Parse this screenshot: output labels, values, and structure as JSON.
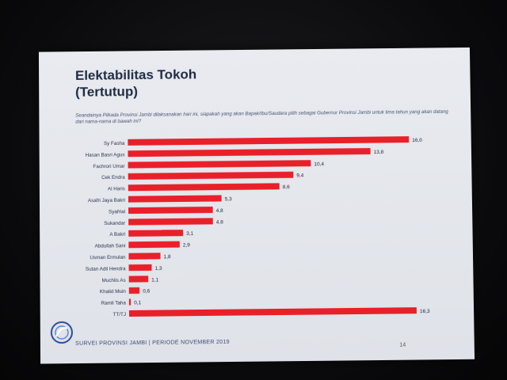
{
  "slide": {
    "title_line1": "Elektabilitas Tokoh",
    "title_line2": "(Tertutup)",
    "question": "Seandainya Pilkada Provinsi Jambi dilaksanakan hari ini, siapakah yang akan Bapak/Ibu/Saudara pilih sebagai Gubernur Provinsi Jambi untuk lima tahun yang akan datang dari nama-nama di bawah ini?",
    "footer": "SURVEI PROVINSI JAMBI | PERIODE NOVEMBER 2019",
    "page_number": "14"
  },
  "chart_data": {
    "type": "bar",
    "orientation": "horizontal",
    "categories": [
      "Sy Fasha",
      "Hasan Basri Agus",
      "Fachrori Umar",
      "Cek Endra",
      "Al Haris",
      "Asafri Jaya Bakri",
      "Syafrial",
      "Sukandar",
      "A Bakri",
      "Abdullah Sani",
      "Usman Ermulan",
      "Sutan Adil Hendra",
      "Muchlis As",
      "Khalid Muin",
      "Ramli Taha",
      "TT/TJ"
    ],
    "values": [
      16.0,
      13.8,
      10.4,
      9.4,
      8.6,
      5.3,
      4.8,
      4.8,
      3.1,
      2.9,
      1.8,
      1.3,
      1.1,
      0.6,
      0.1,
      16.3
    ],
    "labels": [
      "16,0",
      "13,8",
      "10,4",
      "9,4",
      "8,6",
      "5,3",
      "4,8",
      "4,8",
      "3,1",
      "2,9",
      "1,8",
      "1,3",
      "1,1",
      "0,6",
      "0,1",
      "16,3"
    ],
    "bar_color": "#e8202a",
    "xlim": [
      0,
      16.3
    ],
    "grid": false,
    "legend": "none"
  }
}
